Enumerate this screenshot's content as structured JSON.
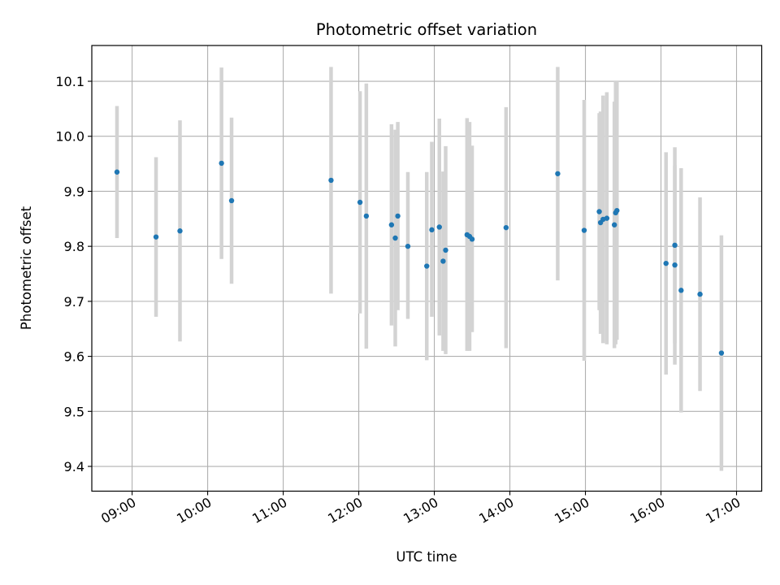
{
  "chart_data": {
    "type": "scatter",
    "title": "Photometric offset variation",
    "xlabel": "UTC time",
    "ylabel": "Photometric offset",
    "xlim": [
      "08:28",
      "17:20"
    ],
    "ylim": [
      9.355,
      10.165
    ],
    "x_ticks": [
      "09:00",
      "10:00",
      "11:00",
      "12:00",
      "13:00",
      "14:00",
      "15:00",
      "16:00",
      "17:00"
    ],
    "y_ticks": [
      9.4,
      9.5,
      9.6,
      9.7,
      9.8,
      9.9,
      10.0,
      10.1
    ],
    "grid": true,
    "colors": {
      "points": "#1f77b4",
      "errorbars": "#d3d3d3",
      "grid": "#b0b0b0"
    },
    "points": [
      {
        "x": "08:48",
        "y": 9.935,
        "ylo": 9.815,
        "yhi": 10.055
      },
      {
        "x": "09:19",
        "y": 9.817,
        "ylo": 9.672,
        "yhi": 9.962
      },
      {
        "x": "09:38",
        "y": 9.828,
        "ylo": 9.627,
        "yhi": 10.029
      },
      {
        "x": "10:11",
        "y": 9.951,
        "ylo": 9.777,
        "yhi": 10.125
      },
      {
        "x": "10:19",
        "y": 9.883,
        "ylo": 9.732,
        "yhi": 10.034
      },
      {
        "x": "11:38",
        "y": 9.92,
        "ylo": 9.714,
        "yhi": 10.126
      },
      {
        "x": "12:01",
        "y": 9.88,
        "ylo": 9.678,
        "yhi": 10.082
      },
      {
        "x": "12:06",
        "y": 9.855,
        "ylo": 9.614,
        "yhi": 10.096
      },
      {
        "x": "12:26",
        "y": 9.839,
        "ylo": 9.656,
        "yhi": 10.022
      },
      {
        "x": "12:29",
        "y": 9.815,
        "ylo": 9.618,
        "yhi": 10.012
      },
      {
        "x": "12:31",
        "y": 9.855,
        "ylo": 9.684,
        "yhi": 10.026
      },
      {
        "x": "12:39",
        "y": 9.8,
        "ylo": 9.668,
        "yhi": 9.935
      },
      {
        "x": "12:54",
        "y": 9.764,
        "ylo": 9.593,
        "yhi": 9.935
      },
      {
        "x": "12:58",
        "y": 9.83,
        "ylo": 9.672,
        "yhi": 9.99
      },
      {
        "x": "13:04",
        "y": 9.835,
        "ylo": 9.638,
        "yhi": 10.032
      },
      {
        "x": "13:07",
        "y": 9.773,
        "ylo": 9.61,
        "yhi": 9.936
      },
      {
        "x": "13:09",
        "y": 9.793,
        "ylo": 9.604,
        "yhi": 9.982
      },
      {
        "x": "13:26",
        "y": 9.821,
        "ylo": 9.61,
        "yhi": 10.033
      },
      {
        "x": "13:28",
        "y": 9.818,
        "ylo": 9.61,
        "yhi": 10.026
      },
      {
        "x": "13:30",
        "y": 9.813,
        "ylo": 9.644,
        "yhi": 9.983
      },
      {
        "x": "13:57",
        "y": 9.834,
        "ylo": 9.615,
        "yhi": 10.053
      },
      {
        "x": "14:38",
        "y": 9.932,
        "ylo": 9.738,
        "yhi": 10.126
      },
      {
        "x": "14:59",
        "y": 9.829,
        "ylo": 9.592,
        "yhi": 10.066
      },
      {
        "x": "15:11",
        "y": 9.863,
        "ylo": 9.684,
        "yhi": 10.042
      },
      {
        "x": "15:12",
        "y": 9.843,
        "ylo": 9.641,
        "yhi": 10.045
      },
      {
        "x": "15:14",
        "y": 9.849,
        "ylo": 9.624,
        "yhi": 10.074
      },
      {
        "x": "15:17",
        "y": 9.851,
        "ylo": 9.622,
        "yhi": 10.08
      },
      {
        "x": "15:23",
        "y": 9.839,
        "ylo": 9.615,
        "yhi": 10.063
      },
      {
        "x": "15:24",
        "y": 9.861,
        "ylo": 9.622,
        "yhi": 10.1
      },
      {
        "x": "15:25",
        "y": 9.865,
        "ylo": 9.63,
        "yhi": 10.1
      },
      {
        "x": "16:04",
        "y": 9.769,
        "ylo": 9.567,
        "yhi": 9.971
      },
      {
        "x": "16:11",
        "y": 9.802,
        "ylo": 9.624,
        "yhi": 9.98
      },
      {
        "x": "16:11",
        "y": 9.766,
        "ylo": 9.585,
        "yhi": 9.947
      },
      {
        "x": "16:16",
        "y": 9.72,
        "ylo": 9.498,
        "yhi": 9.942
      },
      {
        "x": "16:31",
        "y": 9.713,
        "ylo": 9.537,
        "yhi": 9.889
      },
      {
        "x": "16:48",
        "y": 9.606,
        "ylo": 9.392,
        "yhi": 9.82
      }
    ]
  }
}
